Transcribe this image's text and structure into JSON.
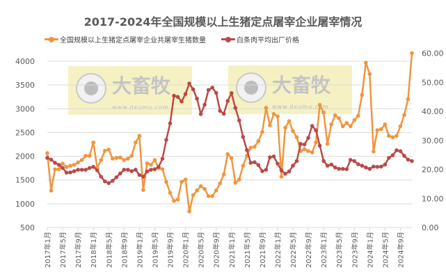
{
  "chart_data": {
    "type": "line",
    "title": "2017-2024年全国规模以上生猪定点屠宰企业屠宰情况",
    "legend_position": "top",
    "grid": true,
    "x_tick_labels": [
      "2017年1月",
      "2017年5月",
      "2017年9月",
      "2018年1月",
      "2018年5月",
      "2018年9月",
      "2019年1月",
      "2019年5月",
      "2019年9月",
      "2020年1月",
      "2020年5月",
      "2020年9月",
      "2021年1月",
      "2021年5月",
      "2021年9月",
      "2022年1月",
      "2022年5月",
      "2022年9月",
      "2023年1月",
      "2023年5月",
      "2023年9月",
      "2024年1月",
      "2024年5月",
      "2024年9月"
    ],
    "x_range": [
      "2017年1月",
      "2024年12月"
    ],
    "y_left": {
      "ylim": [
        500,
        4000
      ],
      "ticks": [
        "500",
        "1000",
        "1500",
        "2000",
        "2500",
        "3000",
        "3500",
        "4000"
      ]
    },
    "y_right": {
      "ylim": [
        0,
        60
      ],
      "ticks": [
        "0.00",
        "10.00",
        "20.00",
        "30.00",
        "40.00",
        "50.00",
        "60.00"
      ]
    },
    "series": [
      {
        "name": "全国规模以上生猪定点屠宰企业共屠宰生猪数量",
        "axis": "left",
        "color": "#F0953F",
        "values": [
          2067,
          1276,
          1726,
          1726,
          1847,
          1774,
          1800,
          1820,
          1870,
          1920,
          2008,
          2008,
          2290,
          1760,
          1920,
          2115,
          2140,
          1950,
          1965,
          1975,
          1920,
          1950,
          2010,
          2290,
          2430,
          1290,
          1850,
          1820,
          1920,
          1750,
          1730,
          1460,
          1230,
          1060,
          1090,
          1460,
          1510,
          840,
          1180,
          1280,
          1370,
          1310,
          1160,
          1160,
          1280,
          1430,
          1620,
          2045,
          1960,
          1440,
          1510,
          1800,
          2010,
          2180,
          2200,
          2320,
          2510,
          3020,
          2650,
          2890,
          2840,
          1570,
          2600,
          2740,
          2530,
          2400,
          2110,
          2150,
          2110,
          2080,
          2290,
          3080,
          2920,
          2260,
          2670,
          2860,
          2800,
          2630,
          2700,
          2630,
          2760,
          2850,
          3290,
          3970,
          3730,
          2100,
          2550,
          2570,
          2670,
          2430,
          2400,
          2430,
          2630,
          2870,
          3200,
          4170
        ]
      },
      {
        "name": "白条肉平均出厂价格",
        "axis": "right",
        "color": "#B94A48",
        "values": [
          24.0,
          23.4,
          22.3,
          21.6,
          20.5,
          18.9,
          19.0,
          19.4,
          19.9,
          19.9,
          19.9,
          20.5,
          20.9,
          19.7,
          17.5,
          15.9,
          15.3,
          16.1,
          17.3,
          18.6,
          19.9,
          19.9,
          19.4,
          19.9,
          18.1,
          17.5,
          19.3,
          19.9,
          20.1,
          20.9,
          23.7,
          30.2,
          35.9,
          45.4,
          45.0,
          43.4,
          46.0,
          49.6,
          47.6,
          44.4,
          39.1,
          42.3,
          47.4,
          48.2,
          46.4,
          40.2,
          39.2,
          43.6,
          46.3,
          41.2,
          36.9,
          31.2,
          26.7,
          22.3,
          22.5,
          21.5,
          19.4,
          19.9,
          24.2,
          24.5,
          22.0,
          19.7,
          18.5,
          19.3,
          21.3,
          22.9,
          28.8,
          28.6,
          30.9,
          35.0,
          33.5,
          28.2,
          22.9,
          21.3,
          21.7,
          20.7,
          20.2,
          20.2,
          20.1,
          23.3,
          22.9,
          21.8,
          21.3,
          20.7,
          20.2,
          21.0,
          20.9,
          21.0,
          21.7,
          24.0,
          24.9,
          26.6,
          26.3,
          24.7,
          23.4,
          22.9
        ]
      }
    ]
  },
  "watermark": {
    "brand": "大畜牧",
    "url": "www.dxumu.com"
  }
}
